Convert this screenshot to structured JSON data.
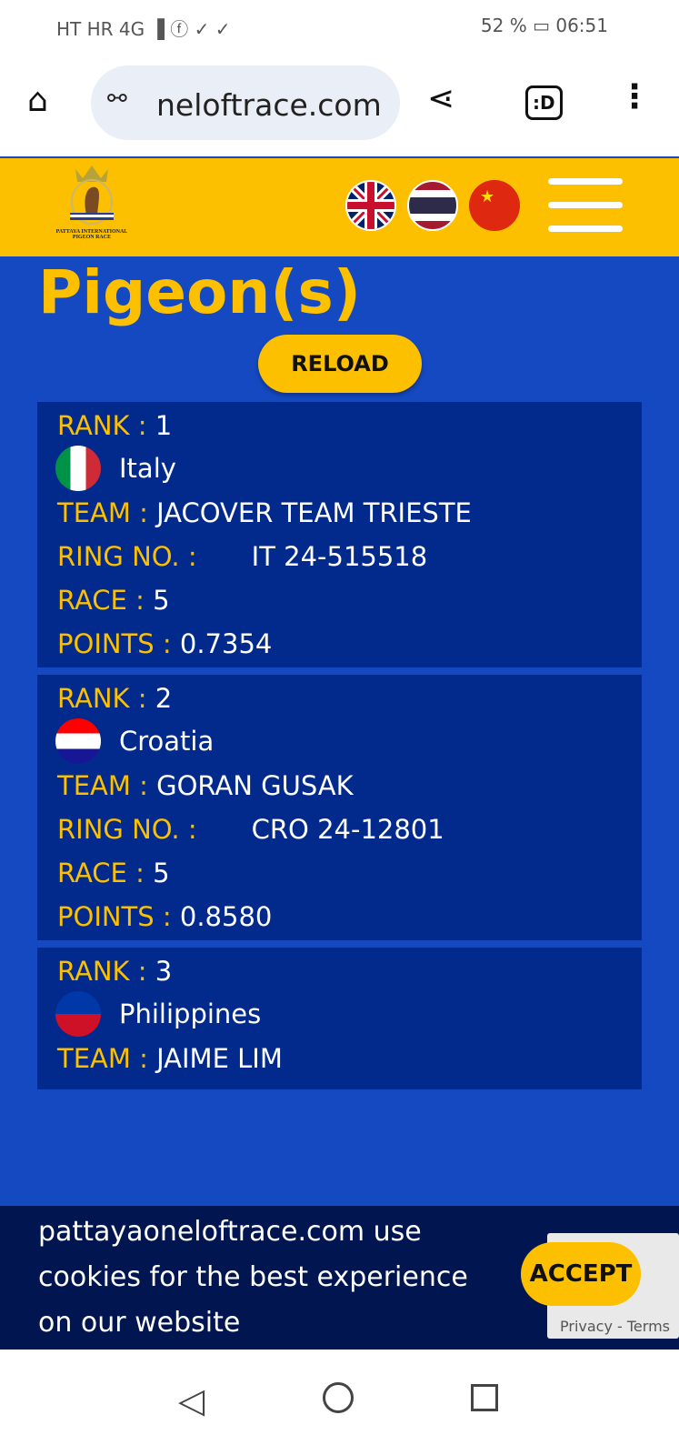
{
  "status_bar": {
    "left": "HT HR 4G ▐ ⓕ ✓ ✓",
    "battery": "52 %",
    "time": "06:51"
  },
  "browser": {
    "url": "neloftrace.com",
    "home_icon": "home-icon",
    "share_icon": "share-icon",
    "tab_icon": ":D"
  },
  "header": {
    "logo_text_1": "PATTAYA INTERNATIONAL",
    "logo_text_2": "PIGEON RACE",
    "languages": [
      "English",
      "Thai",
      "Chinese"
    ]
  },
  "page": {
    "heading": "Pigeon(s)",
    "reload_label": "RELOAD"
  },
  "labels": {
    "rank": "RANK :",
    "team": "TEAM :",
    "ring": "RING NO. :",
    "race": "RACE :",
    "points": "POINTS :"
  },
  "results": [
    {
      "rank": "1",
      "country": "Italy",
      "team": "JACOVER TEAM TRIESTE",
      "ring": "IT 24-515518",
      "race": "5",
      "points": "0.7354"
    },
    {
      "rank": "2",
      "country": "Croatia",
      "team": "GORAN GUSAK",
      "ring": "CRO 24-12801",
      "race": "5",
      "points": "0.8580"
    },
    {
      "rank": "3",
      "country": "Philippines",
      "team": "JAIME LIM"
    }
  ],
  "cookie": {
    "text": "pattayaoneloftrace.com use cookies for the best experience on our website",
    "accept_label": "ACCEPT"
  },
  "recaptcha": {
    "links": "Privacy - Terms"
  },
  "colors": {
    "yellow": "#fcc000",
    "blue": "#1449c2",
    "card": "#012a8c"
  }
}
